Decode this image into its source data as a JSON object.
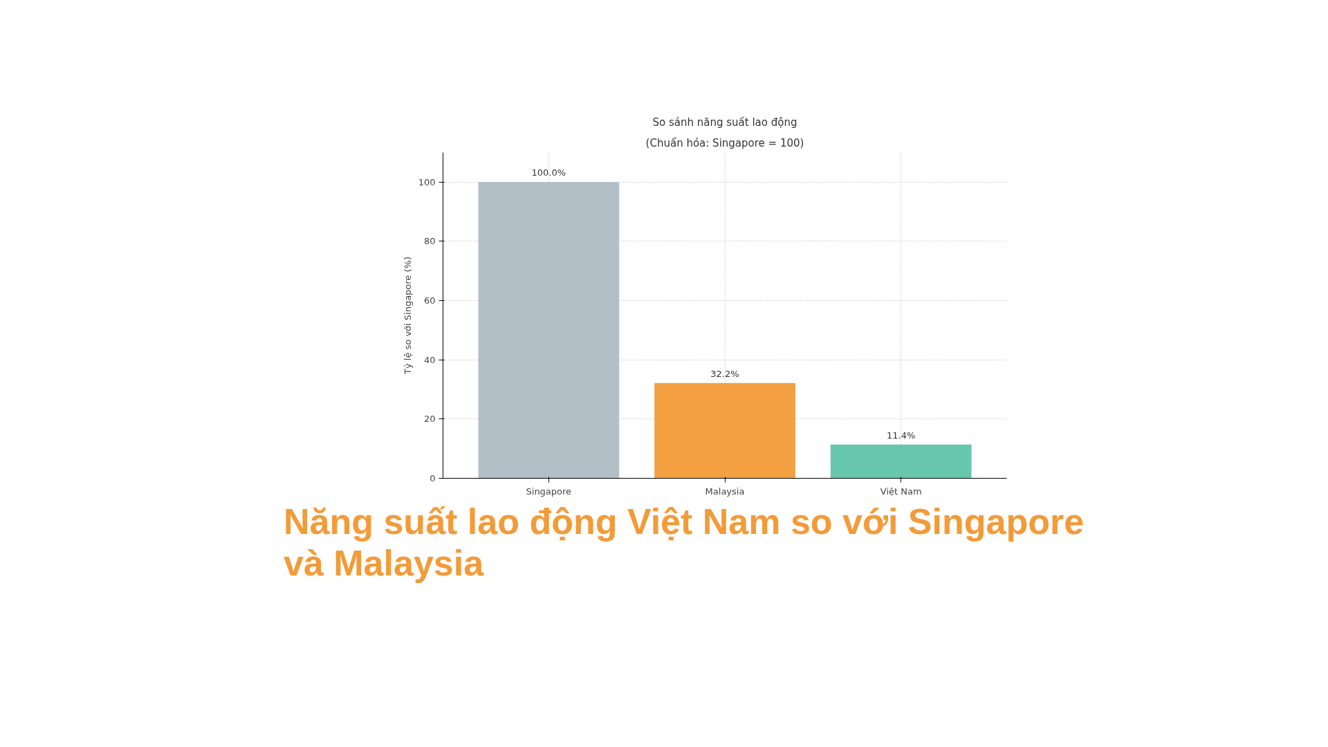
{
  "chart_data": {
    "type": "bar",
    "title": "So sánh năng suất lao động",
    "subtitle": "(Chuẩn hóa: Singapore = 100)",
    "ylabel": "Tỷ lệ so với Singapore (%)",
    "categories": [
      "Singapore",
      "Malaysia",
      "Việt Nam"
    ],
    "values": [
      100,
      32.2,
      11.4
    ],
    "colors": [
      "#aebcc3",
      "#f29b38",
      "#5fc4a8"
    ],
    "value_labels": [
      "100.0%",
      "32.2%",
      "11.4%"
    ],
    "ylim": [
      0,
      110
    ],
    "yticks": [
      0,
      20,
      40,
      60,
      80,
      100
    ],
    "grid": true,
    "annotations": [
      "Năng suất lao động Việt Nam so với Singapore và Malaysia"
    ]
  }
}
